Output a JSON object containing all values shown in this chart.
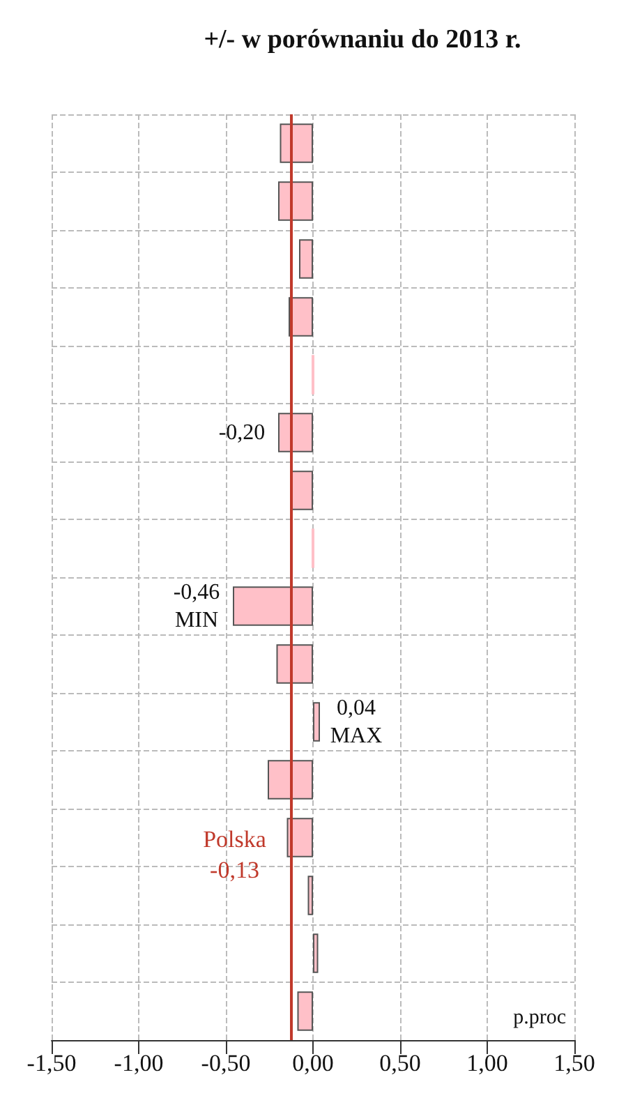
{
  "chart_data": {
    "type": "bar",
    "orientation": "horizontal",
    "title": "+/- w porównaniu do 2013 r.",
    "xlabel": "p.proc",
    "categories": [
      null,
      null,
      null,
      null,
      null,
      null,
      null,
      null,
      null,
      null,
      null,
      null,
      null,
      null,
      null,
      null
    ],
    "values": [
      -0.19,
      -0.2,
      -0.08,
      -0.14,
      0.0,
      -0.2,
      -0.13,
      0.0,
      -0.46,
      -0.21,
      0.04,
      -0.26,
      -0.15,
      -0.03,
      0.03,
      -0.09
    ],
    "value_labels": [
      null,
      null,
      null,
      null,
      null,
      "-0,20",
      null,
      null,
      "-0,46\nMIN",
      null,
      "0,04\nMAX",
      null,
      null,
      null,
      null,
      null
    ],
    "color": "#ffc0c8",
    "xlim": [
      -1.5,
      1.5
    ],
    "xticks": [
      {
        "value": -1.5,
        "label": "-1,50"
      },
      {
        "value": -1,
        "label": "-1,00"
      },
      {
        "value": -0.5,
        "label": "-0,50"
      },
      {
        "value": 0,
        "label": "0,00"
      },
      {
        "value": 0.5,
        "label": "0,50"
      },
      {
        "value": 1,
        "label": "1,00"
      },
      {
        "value": 1.5,
        "label": "1,50"
      }
    ],
    "ref_lines": [
      {
        "axis": "x",
        "value": -0.13,
        "label": "Polska\n-0,13",
        "color": "#c0392b"
      }
    ],
    "grid": true
  }
}
